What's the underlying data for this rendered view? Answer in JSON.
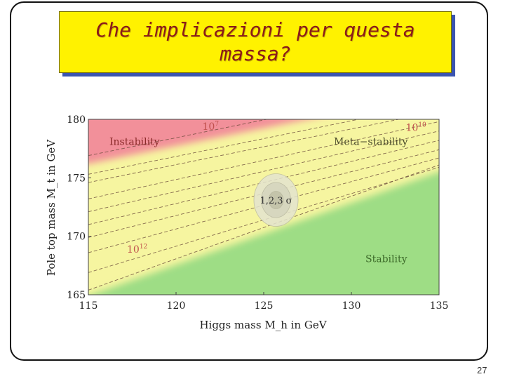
{
  "slide": {
    "title_lines": [
      "Che implicazioni per questa",
      "massa?"
    ],
    "page_number": "27",
    "colors": {
      "title_bg": "#fff200",
      "title_text": "#8b1a1a",
      "title_shadow": "#3b55b0"
    }
  },
  "chart_data": {
    "type": "phase-diagram",
    "xlabel": "Higgs mass M_h in GeV",
    "ylabel": "Pole top mass M_t in GeV",
    "xlim": [
      115,
      135
    ],
    "ylim": [
      165,
      180
    ],
    "xticks": [
      115,
      120,
      125,
      130,
      135
    ],
    "yticks": [
      165,
      170,
      175,
      180
    ],
    "regions": [
      {
        "name": "Instability",
        "color": "#f2909a"
      },
      {
        "name": "Meta-stability",
        "color": "#f6f5a0"
      },
      {
        "name": "Stability",
        "color": "#9edd85"
      }
    ],
    "region_labels": [
      {
        "text": "Instability",
        "x": 116.2,
        "y": 177.8,
        "color": "#8b2a2a"
      },
      {
        "text": "Meta−stability",
        "x": 129.0,
        "y": 177.8,
        "color": "#4a4a2a"
      },
      {
        "text": "Stability",
        "x": 130.8,
        "y": 167.8,
        "color": "#3d6b2a"
      }
    ],
    "contour_labels": [
      {
        "text": "10",
        "exp": "7",
        "x": 121.5,
        "y": 179.1,
        "color": "#c0504d"
      },
      {
        "text": "10",
        "exp": "10",
        "x": 133.1,
        "y": 179.0,
        "color": "#c0504d"
      },
      {
        "text": "10",
        "exp": "12",
        "x": 117.2,
        "y": 168.6,
        "color": "#c0504d"
      }
    ],
    "measurement": {
      "label": "1,2,3 σ",
      "x": 125.7,
      "y": 173.1,
      "sigma_x": 0.42,
      "sigma_y": 0.75
    },
    "boundaries": {
      "instability": [
        [
          115,
          176.2
        ],
        [
          135,
          182.3
        ]
      ],
      "stability": [
        [
          115,
          164.9
        ],
        [
          135,
          175.5
        ]
      ]
    },
    "dashed_lines": [
      [
        [
          115,
          176.9
        ],
        [
          135,
          183.0
        ]
      ],
      [
        [
          115,
          175.3
        ],
        [
          135,
          181.4
        ]
      ],
      [
        [
          115,
          174.6
        ],
        [
          135,
          180.7
        ]
      ],
      [
        [
          115,
          173.2
        ],
        [
          135,
          179.8
        ]
      ],
      [
        [
          115,
          172.1
        ],
        [
          135,
          179.0
        ]
      ],
      [
        [
          115,
          171.0
        ],
        [
          135,
          178.2
        ]
      ],
      [
        [
          115,
          169.9
        ],
        [
          135,
          177.4
        ]
      ],
      [
        [
          115,
          168.6
        ],
        [
          135,
          176.7
        ]
      ],
      [
        [
          115,
          166.9
        ],
        [
          135,
          175.9
        ]
      ],
      [
        [
          115,
          165.4
        ],
        [
          135,
          176.1
        ]
      ]
    ]
  }
}
